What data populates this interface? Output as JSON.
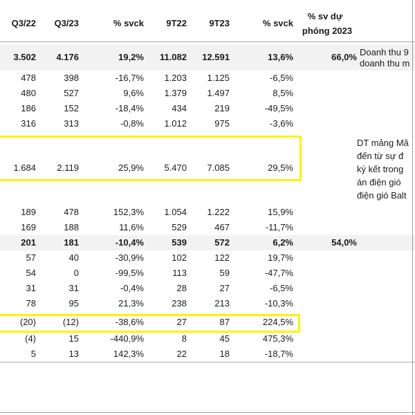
{
  "headers": {
    "q3_22": "Q3/22",
    "q3_23": "Q3/23",
    "yoy_q": "% svck",
    "m9_22": "9T22",
    "m9_23": "9T23",
    "yoy_9m": "% svck",
    "vs_plan_line1": "% sv dự",
    "vs_plan_line2": "phóng 2023"
  },
  "rows": [
    {
      "q3_22": "3.502",
      "q3_23": "4.176",
      "yoy_q": "19,2%",
      "m9_22": "11.082",
      "m9_23": "12.591",
      "yoy_9m": "13,6%",
      "vs_plan": "66,0%"
    },
    {
      "q3_22": "478",
      "q3_23": "398",
      "yoy_q": "-16,7%",
      "m9_22": "1.203",
      "m9_23": "1.125",
      "yoy_9m": "-6,5%",
      "vs_plan": ""
    },
    {
      "q3_22": "480",
      "q3_23": "527",
      "yoy_q": "9,6%",
      "m9_22": "1.379",
      "m9_23": "1.497",
      "yoy_9m": "8,5%",
      "vs_plan": ""
    },
    {
      "q3_22": "186",
      "q3_23": "152",
      "yoy_q": "-18,4%",
      "m9_22": "434",
      "m9_23": "219",
      "yoy_9m": "-49,5%",
      "vs_plan": ""
    },
    {
      "q3_22": "316",
      "q3_23": "313",
      "yoy_q": "-0,8%",
      "m9_22": "1.012",
      "m9_23": "975",
      "yoy_9m": "-3,6%",
      "vs_plan": ""
    },
    {
      "q3_22": "1.684",
      "q3_23": "2.119",
      "yoy_q": "25,9%",
      "m9_22": "5.470",
      "m9_23": "7.085",
      "yoy_9m": "29,5%",
      "vs_plan": ""
    },
    {
      "q3_22": "189",
      "q3_23": "478",
      "yoy_q": "152,3%",
      "m9_22": "1.054",
      "m9_23": "1.222",
      "yoy_9m": "15,9%",
      "vs_plan": ""
    },
    {
      "q3_22": "169",
      "q3_23": "188",
      "yoy_q": "11,6%",
      "m9_22": "529",
      "m9_23": "467",
      "yoy_9m": "-11,7%",
      "vs_plan": ""
    },
    {
      "q3_22": "201",
      "q3_23": "181",
      "yoy_q": "-10,4%",
      "m9_22": "539",
      "m9_23": "572",
      "yoy_9m": "6,2%",
      "vs_plan": "54,0%"
    },
    {
      "q3_22": "57",
      "q3_23": "40",
      "yoy_q": "-30,9%",
      "m9_22": "102",
      "m9_23": "122",
      "yoy_9m": "19,7%",
      "vs_plan": ""
    },
    {
      "q3_22": "54",
      "q3_23": "0",
      "yoy_q": "-99,5%",
      "m9_22": "113",
      "m9_23": "59",
      "yoy_9m": "-47,7%",
      "vs_plan": ""
    },
    {
      "q3_22": "31",
      "q3_23": "31",
      "yoy_q": "-0,4%",
      "m9_22": "28",
      "m9_23": "27",
      "yoy_9m": "-6,5%",
      "vs_plan": ""
    },
    {
      "q3_22": "78",
      "q3_23": "95",
      "yoy_q": "21,3%",
      "m9_22": "238",
      "m9_23": "213",
      "yoy_9m": "-10,3%",
      "vs_plan": ""
    },
    {
      "q3_22": "(20)",
      "q3_23": "(12)",
      "yoy_q": "-38,6%",
      "m9_22": "27",
      "m9_23": "87",
      "yoy_9m": "224,5%",
      "vs_plan": ""
    },
    {
      "q3_22": "(4)",
      "q3_23": "15",
      "yoy_q": "-440,9%",
      "m9_22": "8",
      "m9_23": "45",
      "yoy_9m": "475,3%",
      "vs_plan": ""
    },
    {
      "q3_22": "5",
      "q3_23": "13",
      "yoy_q": "142,3%",
      "m9_22": "22",
      "m9_23": "18",
      "yoy_9m": "-18,7%",
      "vs_plan": ""
    }
  ],
  "notes": {
    "revenue_note": [
      "Doanh thu 9",
      "doanh thu m"
    ],
    "segment_note": [
      "DT mảng Mă",
      "đến từ sự đ",
      "ký kết trong",
      "án điện gió",
      "điện gió Balt"
    ]
  },
  "highlight_color": "#fff200"
}
